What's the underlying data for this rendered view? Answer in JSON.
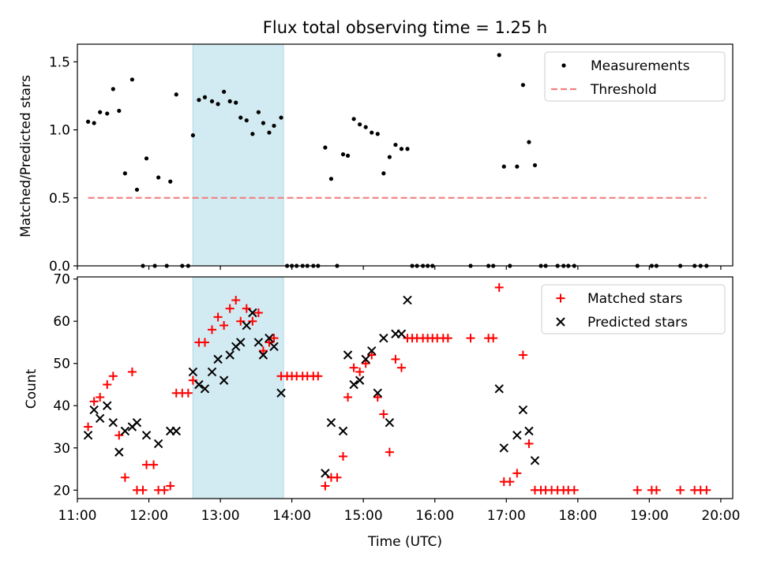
{
  "chart_data": [
    {
      "type": "scatter",
      "title": "Flux total observing time = 1.25 h",
      "ylabel": "Matched/Predicted stars",
      "xlabel": "",
      "xlim": [
        "11:00",
        "20:10"
      ],
      "ylim": [
        0,
        1.63
      ],
      "yticks": [
        0.0,
        0.5,
        1.0,
        1.5
      ],
      "ytick_labels": [
        "0.0",
        "0.5",
        "1.0",
        "1.5"
      ],
      "highlight_span": {
        "start": "12:37",
        "end": "13:53",
        "color": "#add8e6"
      },
      "legend": {
        "position": "top-right",
        "entries": [
          "Measurements",
          "Threshold"
        ]
      },
      "series": [
        {
          "name": "Measurements",
          "marker": "dot",
          "color": "#000000",
          "points": [
            [
              "11:09",
              1.06
            ],
            [
              "11:14",
              1.05
            ],
            [
              "11:19",
              1.13
            ],
            [
              "11:25",
              1.12
            ],
            [
              "11:30",
              1.3
            ],
            [
              "11:35",
              1.14
            ],
            [
              "11:40",
              0.68
            ],
            [
              "11:46",
              1.37
            ],
            [
              "11:50",
              0.56
            ],
            [
              "11:55",
              0.0
            ],
            [
              "11:58",
              0.79
            ],
            [
              "12:05",
              0.0
            ],
            [
              "12:08",
              0.65
            ],
            [
              "12:15",
              0.0
            ],
            [
              "12:18",
              0.62
            ],
            [
              "12:23",
              1.26
            ],
            [
              "12:28",
              0.0
            ],
            [
              "12:33",
              0.0
            ],
            [
              "12:37",
              0.96
            ],
            [
              "12:42",
              1.22
            ],
            [
              "12:47",
              1.24
            ],
            [
              "12:53",
              1.21
            ],
            [
              "12:58",
              1.19
            ],
            [
              "13:03",
              1.28
            ],
            [
              "13:08",
              1.21
            ],
            [
              "13:13",
              1.2
            ],
            [
              "13:17",
              1.09
            ],
            [
              "13:22",
              1.07
            ],
            [
              "13:27",
              0.97
            ],
            [
              "13:32",
              1.13
            ],
            [
              "13:36",
              1.05
            ],
            [
              "13:41",
              0.98
            ],
            [
              "13:45",
              1.03
            ],
            [
              "13:51",
              1.09
            ],
            [
              "13:56",
              0.0
            ],
            [
              "14:00",
              0.0
            ],
            [
              "14:04",
              0.0
            ],
            [
              "14:09",
              0.0
            ],
            [
              "14:13",
              0.0
            ],
            [
              "14:18",
              0.0
            ],
            [
              "14:22",
              0.0
            ],
            [
              "14:28",
              0.87
            ],
            [
              "14:33",
              0.64
            ],
            [
              "14:38",
              0.0
            ],
            [
              "14:43",
              0.82
            ],
            [
              "14:47",
              0.81
            ],
            [
              "14:52",
              1.08
            ],
            [
              "14:57",
              1.04
            ],
            [
              "15:02",
              1.02
            ],
            [
              "15:07",
              0.98
            ],
            [
              "15:12",
              0.97
            ],
            [
              "15:17",
              0.68
            ],
            [
              "15:22",
              0.8
            ],
            [
              "15:27",
              0.89
            ],
            [
              "15:32",
              0.86
            ],
            [
              "15:37",
              0.86
            ],
            [
              "15:41",
              0.0
            ],
            [
              "15:45",
              0.0
            ],
            [
              "15:50",
              0.0
            ],
            [
              "15:54",
              0.0
            ],
            [
              "15:58",
              0.0
            ],
            [
              "16:30",
              0.0
            ],
            [
              "16:45",
              0.0
            ],
            [
              "16:49",
              0.0
            ],
            [
              "16:54",
              1.55
            ],
            [
              "16:58",
              0.73
            ],
            [
              "17:03",
              0.0
            ],
            [
              "17:09",
              0.73
            ],
            [
              "17:14",
              1.33
            ],
            [
              "17:19",
              0.91
            ],
            [
              "17:24",
              0.74
            ],
            [
              "17:29",
              0.0
            ],
            [
              "17:33",
              0.0
            ],
            [
              "17:43",
              0.0
            ],
            [
              "17:48",
              0.0
            ],
            [
              "17:52",
              0.0
            ],
            [
              "17:57",
              0.0
            ],
            [
              "18:50",
              0.0
            ],
            [
              "19:02",
              0.0
            ],
            [
              "19:06",
              0.0
            ],
            [
              "19:26",
              0.0
            ],
            [
              "19:38",
              0.0
            ],
            [
              "19:43",
              0.0
            ],
            [
              "19:48",
              0.0
            ]
          ]
        },
        {
          "name": "Threshold",
          "marker": "dashed-line",
          "color": "#f08080",
          "points": [
            [
              "11:09",
              0.5
            ],
            [
              "19:48",
              0.5
            ]
          ]
        }
      ]
    },
    {
      "type": "scatter",
      "title": "",
      "ylabel": "Count",
      "xlabel": "Time (UTC)",
      "xlim": [
        "11:00",
        "20:10"
      ],
      "ylim": [
        18,
        70.5
      ],
      "yticks": [
        20,
        30,
        40,
        50,
        60,
        70
      ],
      "ytick_labels": [
        "20",
        "30",
        "40",
        "50",
        "60",
        "70"
      ],
      "xticks": [
        "11:00",
        "12:00",
        "13:00",
        "14:00",
        "15:00",
        "16:00",
        "17:00",
        "18:00",
        "19:00",
        "20:00"
      ],
      "highlight_span": {
        "start": "12:37",
        "end": "13:53",
        "color": "#add8e6"
      },
      "legend": {
        "position": "top-right",
        "entries": [
          "Matched stars",
          "Predicted stars"
        ]
      },
      "series": [
        {
          "name": "Matched stars",
          "marker": "plus",
          "color": "#ff0000",
          "points": [
            [
              "11:09",
              35
            ],
            [
              "11:14",
              41
            ],
            [
              "11:19",
              42
            ],
            [
              "11:25",
              45
            ],
            [
              "11:30",
              47
            ],
            [
              "11:35",
              33
            ],
            [
              "11:40",
              23
            ],
            [
              "11:46",
              48
            ],
            [
              "11:50",
              20
            ],
            [
              "11:55",
              20
            ],
            [
              "11:58",
              26
            ],
            [
              "12:04",
              26
            ],
            [
              "12:08",
              20
            ],
            [
              "12:13",
              20
            ],
            [
              "12:18",
              21
            ],
            [
              "12:23",
              43
            ],
            [
              "12:28",
              43
            ],
            [
              "12:33",
              43
            ],
            [
              "12:37",
              46
            ],
            [
              "12:42",
              55
            ],
            [
              "12:47",
              55
            ],
            [
              "12:53",
              58
            ],
            [
              "12:58",
              61
            ],
            [
              "13:03",
              59
            ],
            [
              "13:08",
              63
            ],
            [
              "13:13",
              65
            ],
            [
              "13:17",
              60
            ],
            [
              "13:22",
              63
            ],
            [
              "13:27",
              60
            ],
            [
              "13:32",
              62
            ],
            [
              "13:36",
              53
            ],
            [
              "13:41",
              55
            ],
            [
              "13:45",
              56
            ],
            [
              "13:51",
              47
            ],
            [
              "13:56",
              47
            ],
            [
              "14:00",
              47
            ],
            [
              "14:04",
              47
            ],
            [
              "14:09",
              47
            ],
            [
              "14:13",
              47
            ],
            [
              "14:18",
              47
            ],
            [
              "14:22",
              47
            ],
            [
              "14:28",
              21
            ],
            [
              "14:33",
              23
            ],
            [
              "14:38",
              23
            ],
            [
              "14:43",
              28
            ],
            [
              "14:47",
              42
            ],
            [
              "14:52",
              49
            ],
            [
              "14:57",
              48
            ],
            [
              "15:02",
              50
            ],
            [
              "15:07",
              52
            ],
            [
              "15:12",
              42
            ],
            [
              "15:17",
              38
            ],
            [
              "15:22",
              29
            ],
            [
              "15:27",
              51
            ],
            [
              "15:32",
              49
            ],
            [
              "15:37",
              56
            ],
            [
              "15:41",
              56
            ],
            [
              "15:45",
              56
            ],
            [
              "15:50",
              56
            ],
            [
              "15:54",
              56
            ],
            [
              "15:58",
              56
            ],
            [
              "16:02",
              56
            ],
            [
              "16:07",
              56
            ],
            [
              "16:11",
              56
            ],
            [
              "16:30",
              56
            ],
            [
              "16:45",
              56
            ],
            [
              "16:49",
              56
            ],
            [
              "16:54",
              68
            ],
            [
              "16:58",
              22
            ],
            [
              "17:03",
              22
            ],
            [
              "17:09",
              24
            ],
            [
              "17:14",
              52
            ],
            [
              "17:19",
              31
            ],
            [
              "17:24",
              20
            ],
            [
              "17:29",
              20
            ],
            [
              "17:33",
              20
            ],
            [
              "17:38",
              20
            ],
            [
              "17:43",
              20
            ],
            [
              "17:48",
              20
            ],
            [
              "17:52",
              20
            ],
            [
              "17:57",
              20
            ],
            [
              "18:50",
              20
            ],
            [
              "19:02",
              20
            ],
            [
              "19:06",
              20
            ],
            [
              "19:26",
              20
            ],
            [
              "19:38",
              20
            ],
            [
              "19:43",
              20
            ],
            [
              "19:48",
              20
            ]
          ]
        },
        {
          "name": "Predicted stars",
          "marker": "cross",
          "color": "#000000",
          "points": [
            [
              "11:09",
              33
            ],
            [
              "11:14",
              39
            ],
            [
              "11:19",
              37
            ],
            [
              "11:25",
              40
            ],
            [
              "11:30",
              36
            ],
            [
              "11:35",
              29
            ],
            [
              "11:40",
              34
            ],
            [
              "11:46",
              35
            ],
            [
              "11:50",
              36
            ],
            [
              "11:58",
              33
            ],
            [
              "12:08",
              31
            ],
            [
              "12:18",
              34
            ],
            [
              "12:23",
              34
            ],
            [
              "12:37",
              48
            ],
            [
              "12:42",
              45
            ],
            [
              "12:47",
              44
            ],
            [
              "12:53",
              48
            ],
            [
              "12:58",
              51
            ],
            [
              "13:03",
              46
            ],
            [
              "13:08",
              52
            ],
            [
              "13:13",
              54
            ],
            [
              "13:17",
              55
            ],
            [
              "13:22",
              59
            ],
            [
              "13:27",
              62
            ],
            [
              "13:32",
              55
            ],
            [
              "13:36",
              52
            ],
            [
              "13:41",
              56
            ],
            [
              "13:45",
              54
            ],
            [
              "13:51",
              43
            ],
            [
              "14:28",
              24
            ],
            [
              "14:33",
              36
            ],
            [
              "14:43",
              34
            ],
            [
              "14:47",
              52
            ],
            [
              "14:52",
              45
            ],
            [
              "14:57",
              46
            ],
            [
              "15:02",
              51
            ],
            [
              "15:07",
              53
            ],
            [
              "15:12",
              43
            ],
            [
              "15:17",
              56
            ],
            [
              "15:22",
              36
            ],
            [
              "15:27",
              57
            ],
            [
              "15:32",
              57
            ],
            [
              "15:37",
              65
            ],
            [
              "16:54",
              44
            ],
            [
              "16:58",
              30
            ],
            [
              "17:09",
              33
            ],
            [
              "17:14",
              39
            ],
            [
              "17:19",
              34
            ],
            [
              "17:24",
              27
            ]
          ]
        }
      ]
    }
  ]
}
